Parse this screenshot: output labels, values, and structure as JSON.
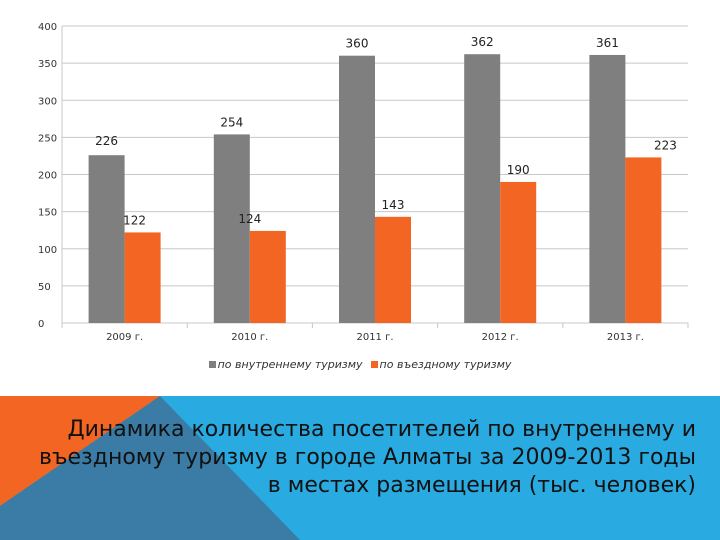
{
  "chart_data": {
    "type": "bar",
    "categories": [
      "2009 г.",
      "2010 г.",
      "2011 г.",
      "2012 г.",
      "2013 г."
    ],
    "series": [
      {
        "name": "по внутреннему туризму",
        "values": [
          226,
          254,
          360,
          362,
          361
        ],
        "color": "#7f7f80"
      },
      {
        "name": "по въездному туризму",
        "values": [
          122,
          124,
          143,
          190,
          223
        ],
        "color": "#f26522"
      }
    ],
    "ylim": [
      0,
      400
    ],
    "yticks": [
      0,
      50,
      100,
      150,
      200,
      250,
      300,
      350,
      400
    ],
    "grid": true,
    "legend": "bottom",
    "title": "",
    "xlabel": "",
    "ylabel": ""
  },
  "caption": "Динамика количества посетителей по внутреннему и въездному туризму в городе Алматы за 2009-2013 годы в местах размещения (тыс. человек)",
  "colors": {
    "footer_blue": "#29abe2",
    "footer_orange": "#f26522",
    "footer_dark": "#3a7ca5"
  }
}
